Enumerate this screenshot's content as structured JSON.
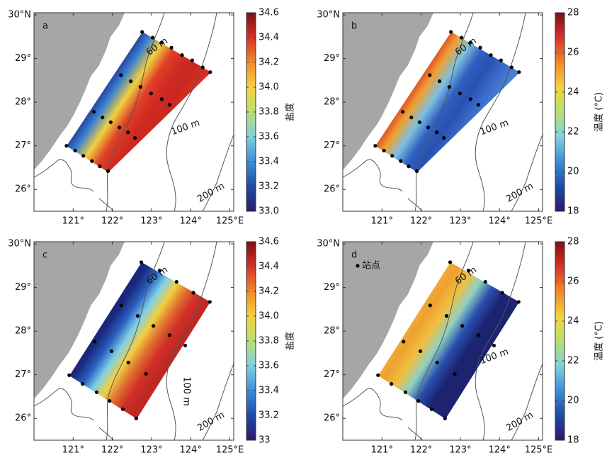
{
  "map": {
    "xlim": [
      120,
      125.1
    ],
    "ylim": [
      25.5,
      30.05
    ],
    "lon_ticks": [
      {
        "value": 121,
        "label": "121°"
      },
      {
        "value": 122,
        "label": "122°"
      },
      {
        "value": 123,
        "label": "123°"
      },
      {
        "value": 124,
        "label": "124°"
      },
      {
        "value": 125,
        "label": "125°E"
      }
    ],
    "lat_ticks": [
      {
        "value": 30,
        "label": "30°N"
      },
      {
        "value": 29,
        "label": "29°"
      },
      {
        "value": 28,
        "label": "28°"
      },
      {
        "value": 27,
        "label": "27°"
      },
      {
        "value": 26,
        "label": "26°"
      }
    ],
    "land_color": "#a6a6a6",
    "station_color": "#000000"
  },
  "panels": [
    {
      "label": "a",
      "contour_labels": [
        "60 m",
        "100 m",
        "200 m"
      ],
      "colorbar": {
        "label": "盐度",
        "range": [
          33,
          34.6
        ],
        "ticks": [
          34.6,
          34.4,
          34.2,
          {
            "value": 34,
            "label": "34.0"
          },
          33.8,
          33.6,
          33.4,
          33.2,
          {
            "value": 33,
            "label": "33.0"
          }
        ],
        "colormap": [
          "#2b1a6b",
          "#1f4aa8",
          "#3c8fd6",
          "#7fd0e0",
          "#b8e070",
          "#f5d23c",
          "#f08a2a",
          "#d8322a",
          "#7a1014"
        ]
      },
      "field_colors": [
        "#1c2a8a",
        "#3a7fd0",
        "#f0d040",
        "#e04028",
        "#d02a22",
        "#c8281f",
        "#d83024"
      ],
      "stations": {
        "lon": [
          122.76,
          123.03,
          123.26,
          123.51,
          123.78,
          124.04,
          124.31,
          124.5,
          122.22,
          122.47,
          122.72,
          122.99,
          123.26,
          123.46,
          121.53,
          121.75,
          121.96,
          122.18,
          122.4,
          122.58,
          120.83,
          121.05,
          121.26,
          121.48,
          121.68,
          121.89
        ],
        "lat": [
          29.61,
          29.48,
          29.37,
          29.25,
          29.08,
          28.96,
          28.8,
          28.69,
          28.62,
          28.48,
          28.35,
          28.2,
          28.07,
          27.94,
          27.78,
          27.65,
          27.54,
          27.42,
          27.31,
          27.18,
          27.0,
          26.89,
          26.77,
          26.65,
          26.53,
          26.42
        ]
      }
    },
    {
      "label": "b",
      "contour_labels": [
        "60 m",
        "100 m",
        "200 m"
      ],
      "colorbar": {
        "label": "温度 (°C)",
        "range": [
          18,
          28
        ],
        "ticks": [
          28,
          26,
          24,
          22,
          20,
          18
        ],
        "colormap": [
          "#2b1a6b",
          "#1f4aa8",
          "#3c8fd6",
          "#7fd0e0",
          "#b8e070",
          "#f5d23c",
          "#f08a2a",
          "#d8322a",
          "#7a1014"
        ]
      },
      "field_colors": [
        "#d83020",
        "#f0a030",
        "#7ec0e0",
        "#3060c0",
        "#2a50b0",
        "#3a6ccc",
        "#4a80d0"
      ],
      "stations": {
        "lon": [
          122.76,
          123.03,
          123.26,
          123.51,
          123.78,
          124.04,
          124.31,
          124.5,
          122.22,
          122.47,
          122.72,
          122.99,
          123.26,
          123.46,
          121.53,
          121.75,
          121.96,
          122.18,
          122.4,
          122.58,
          120.83,
          121.05,
          121.26,
          121.48,
          121.68,
          121.89
        ],
        "lat": [
          29.61,
          29.48,
          29.37,
          29.25,
          29.08,
          28.96,
          28.8,
          28.69,
          28.62,
          28.48,
          28.35,
          28.2,
          28.07,
          27.94,
          27.78,
          27.65,
          27.54,
          27.42,
          27.31,
          27.18,
          27.0,
          26.89,
          26.77,
          26.65,
          26.53,
          26.42
        ]
      }
    },
    {
      "label": "c",
      "contour_labels": [
        "60 m",
        "100 m",
        "200 m"
      ],
      "colorbar": {
        "label": "盐度",
        "range": [
          33,
          34.6
        ],
        "ticks": [
          34.6,
          34.4,
          34.2,
          {
            "value": 34,
            "label": "34.0"
          },
          33.8,
          33.6,
          33.4,
          33.2,
          33
        ],
        "colormap": [
          "#2b1a6b",
          "#1f4aa8",
          "#3c8fd6",
          "#7fd0e0",
          "#b8e070",
          "#f5d23c",
          "#f08a2a",
          "#d8322a",
          "#7a1014"
        ]
      },
      "field_colors": [
        "#1a1f6e",
        "#1a2a80",
        "#2a60c0",
        "#7fd0e8",
        "#f0d040",
        "#e07030",
        "#d03026",
        "#c02822"
      ],
      "stations": {
        "lon": [
          122.74,
          123.21,
          123.64,
          124.07,
          124.49,
          122.23,
          122.65,
          123.05,
          123.46,
          123.86,
          121.55,
          121.98,
          122.41,
          122.86,
          120.9,
          121.24,
          121.6,
          121.93,
          122.27,
          122.61
        ],
        "lat": [
          29.58,
          29.39,
          29.13,
          28.88,
          28.67,
          28.59,
          28.35,
          28.12,
          27.91,
          27.67,
          27.76,
          27.54,
          27.28,
          27.02,
          26.99,
          26.79,
          26.6,
          26.4,
          26.21,
          26.0
        ]
      }
    },
    {
      "label": "d",
      "contour_labels": [
        "60 m",
        "100 m",
        "200 m"
      ],
      "legend": "站点",
      "colorbar": {
        "label": "温度 (°C)",
        "range": [
          18,
          28
        ],
        "ticks": [
          28,
          26,
          24,
          22,
          20,
          18
        ],
        "colormap": [
          "#2b1a6b",
          "#1f4aa8",
          "#3c8fd6",
          "#7fd0e0",
          "#b8e070",
          "#f5d23c",
          "#f08a2a",
          "#d8322a",
          "#7a1014"
        ]
      },
      "field_colors": [
        "#f0b040",
        "#f0a030",
        "#f0c040",
        "#90d0c0",
        "#2a50b0",
        "#1c2470",
        "#1c2470"
      ],
      "stations": {
        "lon": [
          122.74,
          123.21,
          123.64,
          124.07,
          124.49,
          122.23,
          122.65,
          123.05,
          123.46,
          123.86,
          121.55,
          121.98,
          122.41,
          122.86,
          120.9,
          121.24,
          121.6,
          121.93,
          122.27,
          122.61
        ],
        "lat": [
          29.58,
          29.39,
          29.13,
          28.88,
          28.67,
          28.59,
          28.35,
          28.12,
          27.91,
          27.67,
          27.76,
          27.54,
          27.28,
          27.02,
          26.99,
          26.79,
          26.6,
          26.4,
          26.21,
          26.0
        ]
      }
    }
  ]
}
